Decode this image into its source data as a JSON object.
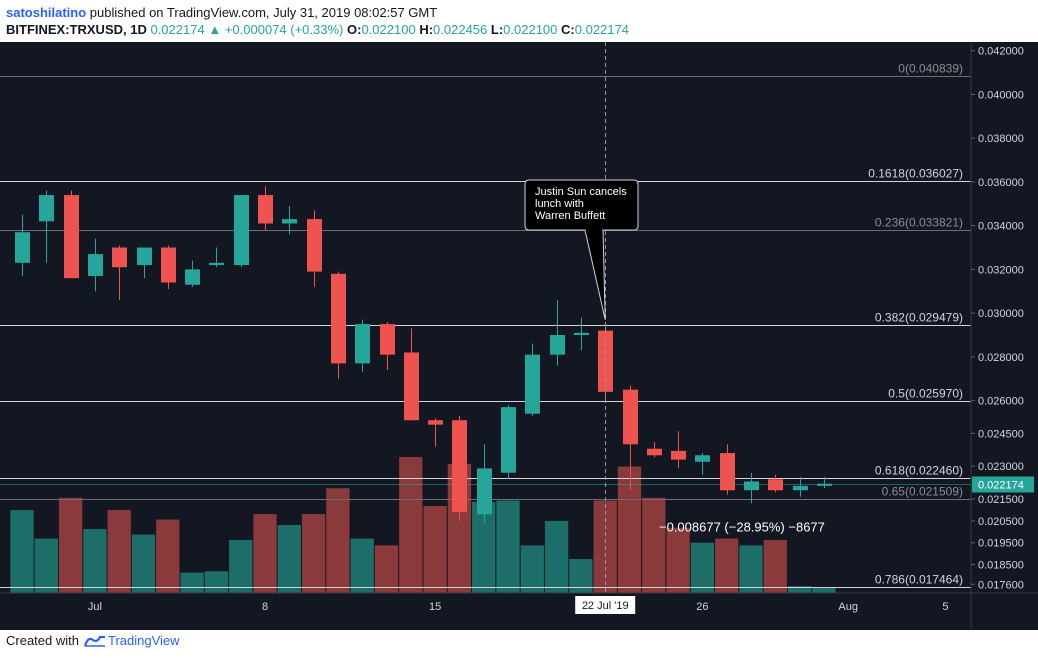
{
  "header": {
    "author": "satoshilatino",
    "publish_text": " published on TradingView.com, July 31, 2019 08:02:57 GMT",
    "symbol_text": "BITFINEX:TRXUSD, 1D",
    "last": "0.022174",
    "arrow": "▲",
    "change": "+0.000074 (+0.33%)",
    "o_label": "O:",
    "o_value": "0.022100",
    "h_label": "H:",
    "h_value": "0.022456",
    "l_label": "L:",
    "l_value": "0.022100",
    "c_label": "C:",
    "c_value": "0.022174"
  },
  "footer": {
    "created_with": "Created with",
    "brand": "TradingView"
  },
  "colors": {
    "background": "#131722",
    "up": "#26a69a",
    "down": "#ef5350",
    "vol_up": "#1d6e68",
    "vol_down": "#8a3a3b",
    "fib_line": "#d1d4dc",
    "current": "#26a69a"
  },
  "chart_data": {
    "type": "candlestick",
    "symbol": "BITFINEX:TRXUSD",
    "interval": "1D",
    "ylim": [
      0.0172,
      0.0424
    ],
    "y_ticks": [
      "0.042000",
      "0.040000",
      "0.038000",
      "0.036000",
      "0.034000",
      "0.032000",
      "0.030000",
      "0.028000",
      "0.026000",
      "0.024500",
      "0.023000",
      "0.021500",
      "0.020500",
      "0.019500",
      "0.018500",
      "0.017600"
    ],
    "x_ticks": [
      {
        "label": "Jul",
        "index": 3
      },
      {
        "label": "8",
        "index": 10
      },
      {
        "label": "15",
        "index": 17
      },
      {
        "label": "22 Jul '19",
        "index": 24,
        "highlight": true
      },
      {
        "label": "26",
        "index": 28
      },
      {
        "label": "Aug",
        "index": 34
      },
      {
        "label": "5",
        "index": 38
      }
    ],
    "candles": [
      {
        "o": 0.0323,
        "h": 0.0345,
        "l": 0.0317,
        "c": 0.0337,
        "v": 0.61
      },
      {
        "o": 0.0342,
        "h": 0.0356,
        "l": 0.0323,
        "c": 0.0354,
        "v": 0.4
      },
      {
        "o": 0.0354,
        "h": 0.0356,
        "l": 0.0316,
        "c": 0.0316,
        "v": 0.7
      },
      {
        "o": 0.0317,
        "h": 0.0334,
        "l": 0.031,
        "c": 0.0327,
        "v": 0.47
      },
      {
        "o": 0.033,
        "h": 0.0331,
        "l": 0.0306,
        "c": 0.0321,
        "v": 0.61
      },
      {
        "o": 0.0322,
        "h": 0.033,
        "l": 0.0316,
        "c": 0.033,
        "v": 0.43
      },
      {
        "o": 0.033,
        "h": 0.0331,
        "l": 0.0311,
        "c": 0.0314,
        "v": 0.54
      },
      {
        "o": 0.0313,
        "h": 0.0324,
        "l": 0.0312,
        "c": 0.032,
        "v": 0.15
      },
      {
        "o": 0.0322,
        "h": 0.033,
        "l": 0.0321,
        "c": 0.0323,
        "v": 0.16
      },
      {
        "o": 0.0322,
        "h": 0.0353,
        "l": 0.0321,
        "c": 0.0354,
        "v": 0.39
      },
      {
        "o": 0.0354,
        "h": 0.0358,
        "l": 0.0338,
        "c": 0.0341,
        "v": 0.58
      },
      {
        "o": 0.0341,
        "h": 0.0349,
        "l": 0.0336,
        "c": 0.0343,
        "v": 0.5
      },
      {
        "o": 0.0343,
        "h": 0.0347,
        "l": 0.0312,
        "c": 0.0319,
        "v": 0.58
      },
      {
        "o": 0.0318,
        "h": 0.0319,
        "l": 0.027,
        "c": 0.0277,
        "v": 0.77
      },
      {
        "o": 0.0277,
        "h": 0.0297,
        "l": 0.0273,
        "c": 0.0295,
        "v": 0.4
      },
      {
        "o": 0.0295,
        "h": 0.0296,
        "l": 0.0274,
        "c": 0.0281,
        "v": 0.35
      },
      {
        "o": 0.0282,
        "h": 0.0293,
        "l": 0.0251,
        "c": 0.0251,
        "v": 1.0
      },
      {
        "o": 0.0251,
        "h": 0.0252,
        "l": 0.0239,
        "c": 0.0249,
        "v": 0.64
      },
      {
        "o": 0.0251,
        "h": 0.0253,
        "l": 0.0205,
        "c": 0.0209,
        "v": 0.95
      },
      {
        "o": 0.0208,
        "h": 0.024,
        "l": 0.0204,
        "c": 0.0229,
        "v": 0.67
      },
      {
        "o": 0.0227,
        "h": 0.0258,
        "l": 0.0224,
        "c": 0.0257,
        "v": 0.68
      },
      {
        "o": 0.0254,
        "h": 0.0286,
        "l": 0.0253,
        "c": 0.0281,
        "v": 0.35
      },
      {
        "o": 0.0281,
        "h": 0.0306,
        "l": 0.0276,
        "c": 0.029,
        "v": 0.53
      },
      {
        "o": 0.029,
        "h": 0.0298,
        "l": 0.0283,
        "c": 0.0291,
        "v": 0.25
      },
      {
        "o": 0.0292,
        "h": 0.0296,
        "l": 0.0259,
        "c": 0.0264,
        "v": 0.68
      },
      {
        "o": 0.0265,
        "h": 0.0267,
        "l": 0.0219,
        "c": 0.024,
        "v": 0.93
      },
      {
        "o": 0.0238,
        "h": 0.0241,
        "l": 0.0234,
        "c": 0.0235,
        "v": 0.7
      },
      {
        "o": 0.0237,
        "h": 0.0246,
        "l": 0.0229,
        "c": 0.0233,
        "v": 0.48
      },
      {
        "o": 0.0232,
        "h": 0.0236,
        "l": 0.0226,
        "c": 0.0235,
        "v": 0.37
      },
      {
        "o": 0.0236,
        "h": 0.024,
        "l": 0.0217,
        "c": 0.0219,
        "v": 0.4
      },
      {
        "o": 0.0219,
        "h": 0.0227,
        "l": 0.0213,
        "c": 0.0223,
        "v": 0.35
      },
      {
        "o": 0.0224,
        "h": 0.0226,
        "l": 0.0218,
        "c": 0.0219,
        "v": 0.39
      },
      {
        "o": 0.0219,
        "h": 0.0225,
        "l": 0.0216,
        "c": 0.0221,
        "v": 0.05
      },
      {
        "o": 0.0221,
        "h": 0.0225,
        "l": 0.022,
        "c": 0.0222,
        "v": 0.04
      }
    ],
    "fib_levels": [
      {
        "label": "0(0.040839)",
        "value": 0.040839,
        "bright": false
      },
      {
        "label": "0.1618(0.036027)",
        "value": 0.036027,
        "bright": true
      },
      {
        "label": "0.236(0.033821)",
        "value": 0.033821,
        "bright": false
      },
      {
        "label": "0.382(0.029479)",
        "value": 0.029479,
        "bright": true
      },
      {
        "label": "0.5(0.025970)",
        "value": 0.02597,
        "bright": true
      },
      {
        "label": "0.618(0.022460)",
        "value": 0.02246,
        "bright": true
      },
      {
        "label": "0.65(0.021509)",
        "value": 0.021509,
        "bright": false
      },
      {
        "label": "0.786(0.017464)",
        "value": 0.017464,
        "bright": true
      }
    ],
    "current_price": {
      "label": "0.022174",
      "value": 0.022174
    },
    "crosshair_index": 24,
    "annotation": {
      "lines": [
        "Justin Sun cancels",
        "lunch with",
        "Warren Buffett"
      ],
      "anchor_index": 24,
      "anchor_value": 0.0297
    },
    "measure_text": "−0.008677 (−28.95%) −8677",
    "measure_value": 0.0202
  }
}
